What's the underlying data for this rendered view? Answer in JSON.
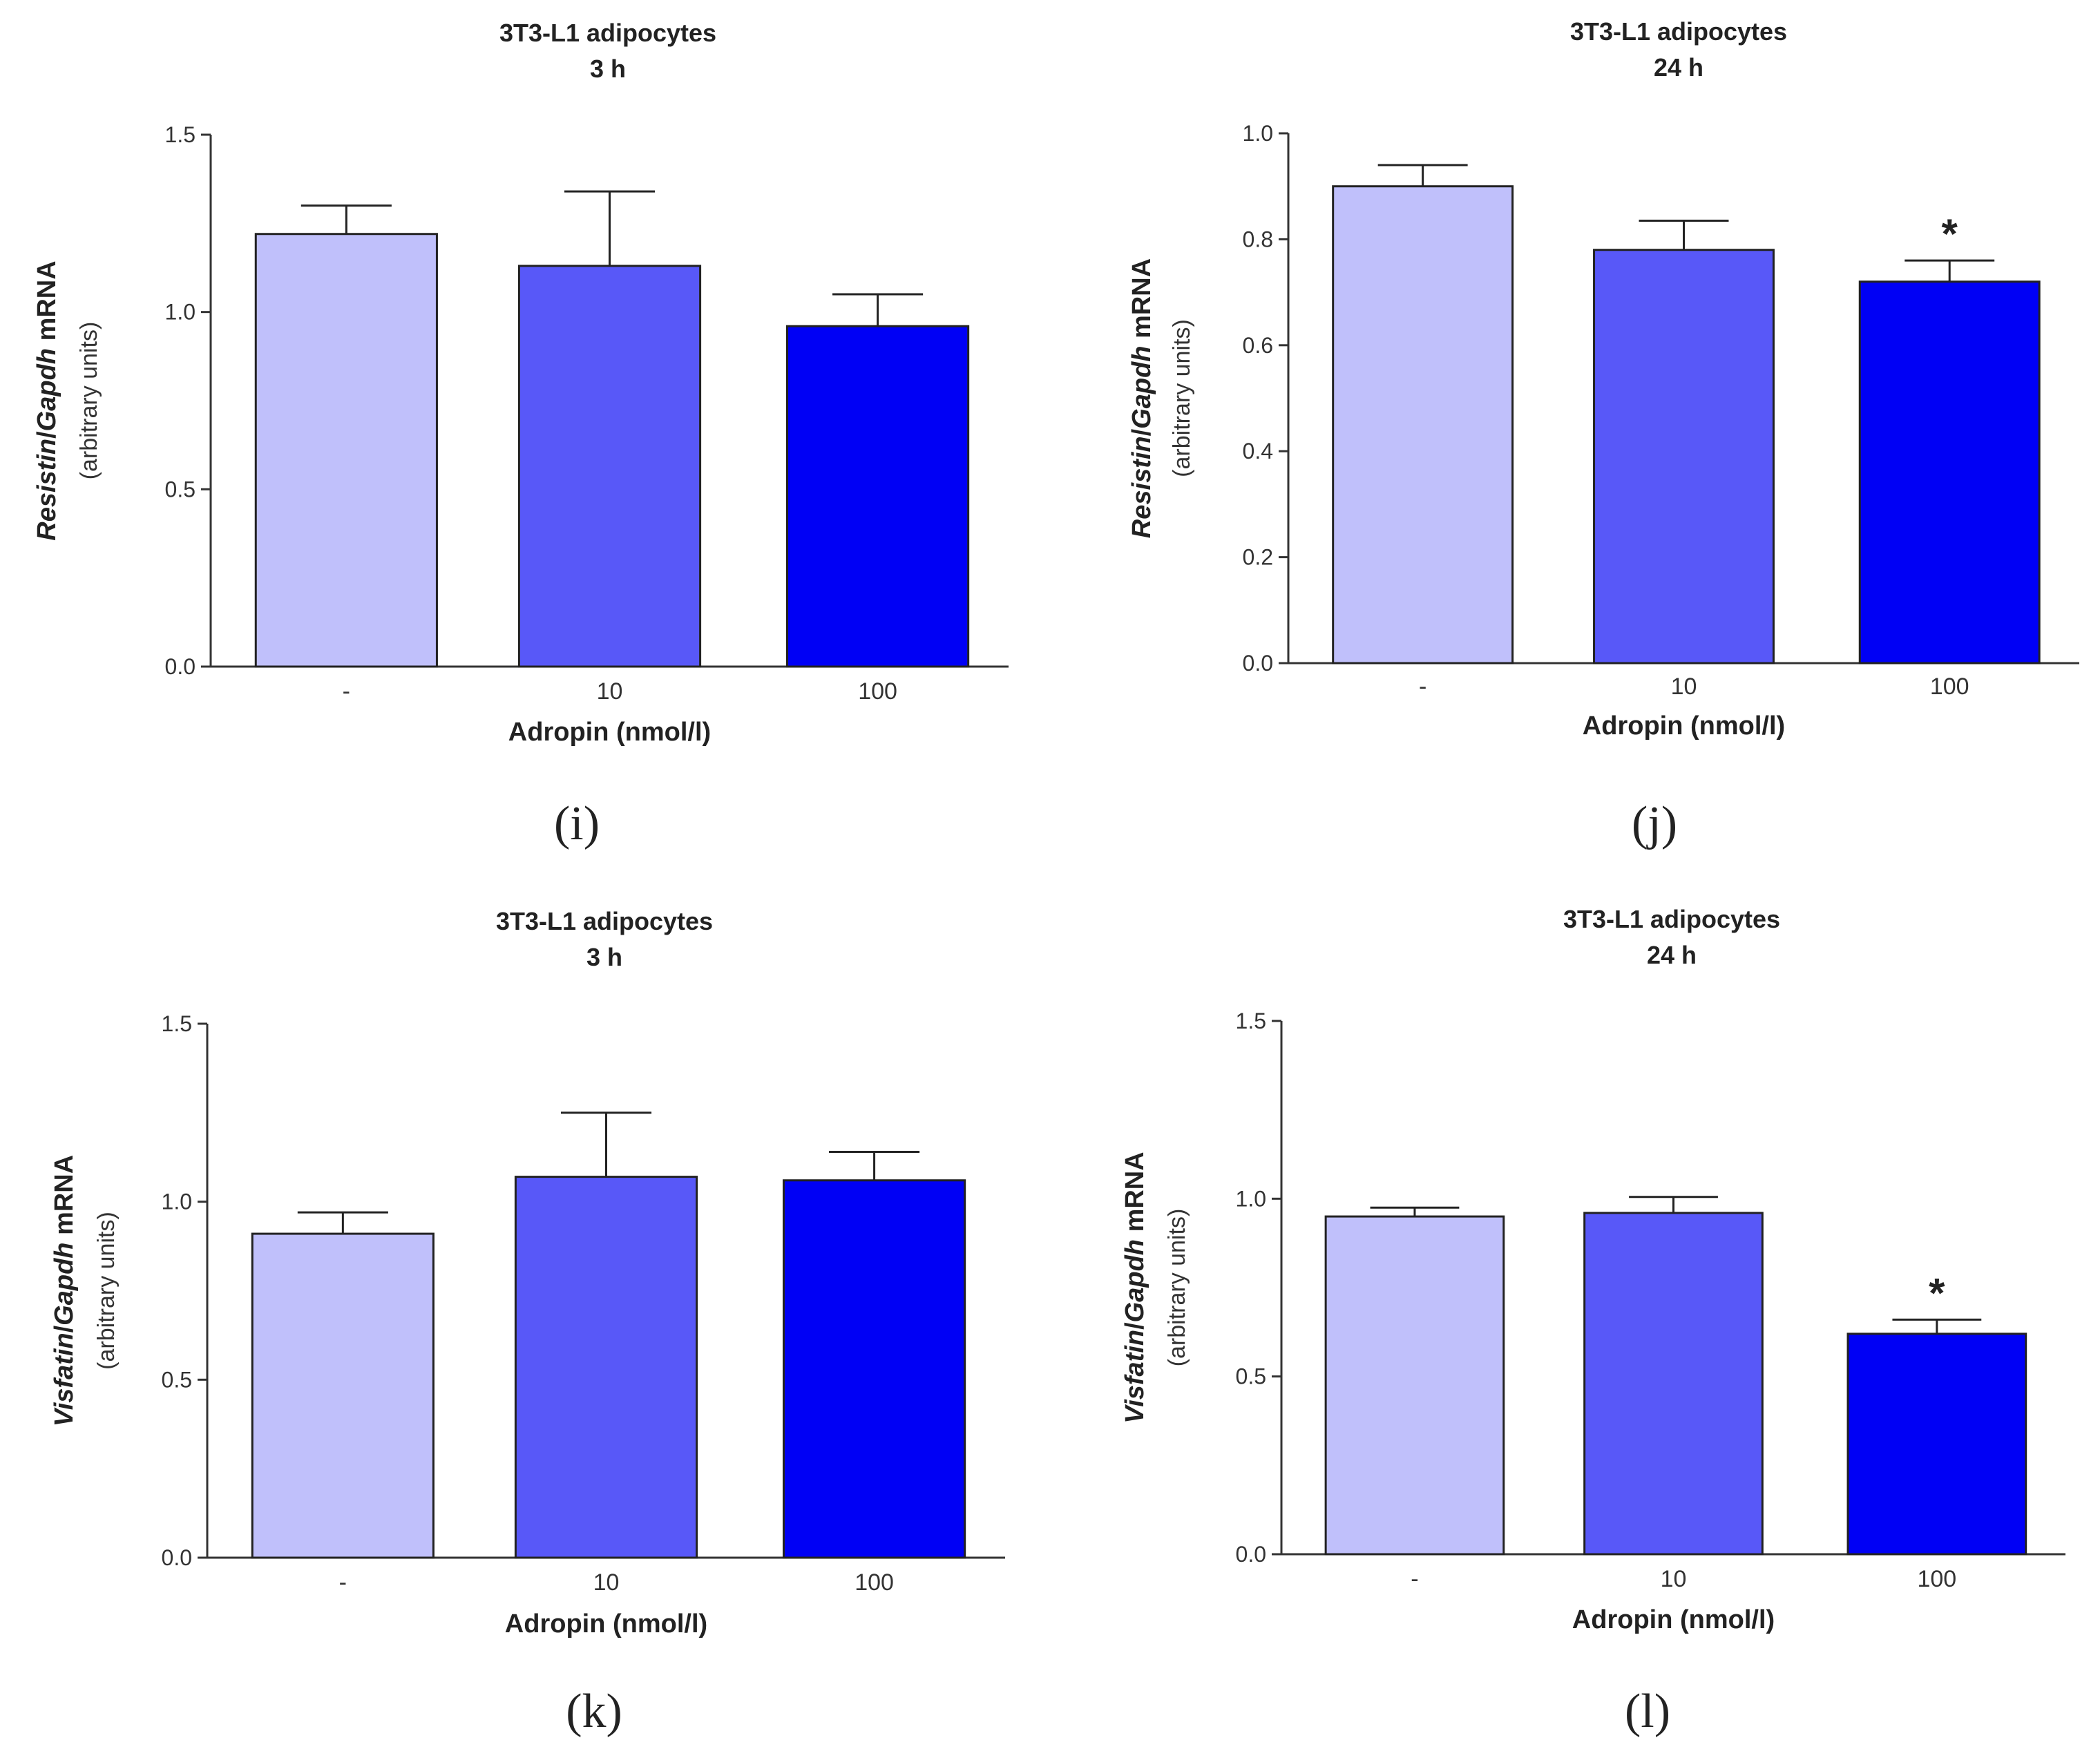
{
  "chart_data": [
    {
      "type": "bar",
      "panel": "(i)",
      "title": [
        "3T3-L1 adipocytes",
        "3 h"
      ],
      "ylabel_gene": "Resistin",
      "ylabel_ref": "Gapdh",
      "ylabel_suffix": "mRNA",
      "ylabel_units": "(arbitrary units)",
      "xlabel": "Adropin (nmol/l)",
      "categories": [
        "-",
        "10",
        "100"
      ],
      "values": [
        1.22,
        1.13,
        0.96
      ],
      "errors": [
        0.08,
        0.21,
        0.09
      ],
      "significance": [
        "",
        "",
        ""
      ],
      "ylim": [
        0,
        1.5
      ],
      "yticks": [
        "0.0",
        "0.5",
        "1.0",
        "1.5"
      ],
      "yticks_values": [
        0,
        0.5,
        1.0,
        1.5
      ]
    },
    {
      "type": "bar",
      "panel": "(j)",
      "title": [
        "3T3-L1 adipocytes",
        "24 h"
      ],
      "ylabel_gene": "Resistin",
      "ylabel_ref": "Gapdh",
      "ylabel_suffix": "mRNA",
      "ylabel_units": "(arbitrary units)",
      "xlabel": "Adropin (nmol/l)",
      "categories": [
        "-",
        "10",
        "100"
      ],
      "values": [
        0.9,
        0.78,
        0.72
      ],
      "errors": [
        0.04,
        0.055,
        0.04
      ],
      "significance": [
        "",
        "",
        "*"
      ],
      "ylim": [
        0,
        1.0
      ],
      "yticks": [
        "0.0",
        "0.2",
        "0.4",
        "0.6",
        "0.8",
        "1.0"
      ],
      "yticks_values": [
        0,
        0.2,
        0.4,
        0.6,
        0.8,
        1.0
      ]
    },
    {
      "type": "bar",
      "panel": "(k)",
      "title": [
        "3T3-L1 adipocytes",
        "3 h"
      ],
      "ylabel_gene": "Visfatin",
      "ylabel_ref": "Gapdh",
      "ylabel_suffix": "mRNA",
      "ylabel_units": "(arbitrary units)",
      "xlabel": "Adropin (nmol/l)",
      "categories": [
        "-",
        "10",
        "100"
      ],
      "values": [
        0.91,
        1.07,
        1.06
      ],
      "errors": [
        0.06,
        0.18,
        0.08
      ],
      "significance": [
        "",
        "",
        ""
      ],
      "ylim": [
        0,
        1.5
      ],
      "yticks": [
        "0.0",
        "0.5",
        "1.0",
        "1.5"
      ],
      "yticks_values": [
        0,
        0.5,
        1.0,
        1.5
      ]
    },
    {
      "type": "bar",
      "panel": "(l)",
      "title": [
        "3T3-L1 adipocytes",
        "24 h"
      ],
      "ylabel_gene": "Visfatin",
      "ylabel_ref": "Gapdh",
      "ylabel_suffix": "mRNA",
      "ylabel_units": "(arbitrary units)",
      "xlabel": "Adropin (nmol/l)",
      "categories": [
        "-",
        "10",
        "100"
      ],
      "values": [
        0.95,
        0.96,
        0.62
      ],
      "errors": [
        0.025,
        0.045,
        0.04
      ],
      "significance": [
        "",
        "",
        "*"
      ],
      "ylim": [
        0,
        1.5
      ],
      "yticks": [
        "0.0",
        "0.5",
        "1.0",
        "1.5"
      ],
      "yticks_values": [
        0,
        0.5,
        1.0,
        1.5
      ]
    }
  ],
  "colors": {
    "bars": [
      "#c0c0fb",
      "#5858f8",
      "#0000f5"
    ],
    "axis": "#333333"
  }
}
